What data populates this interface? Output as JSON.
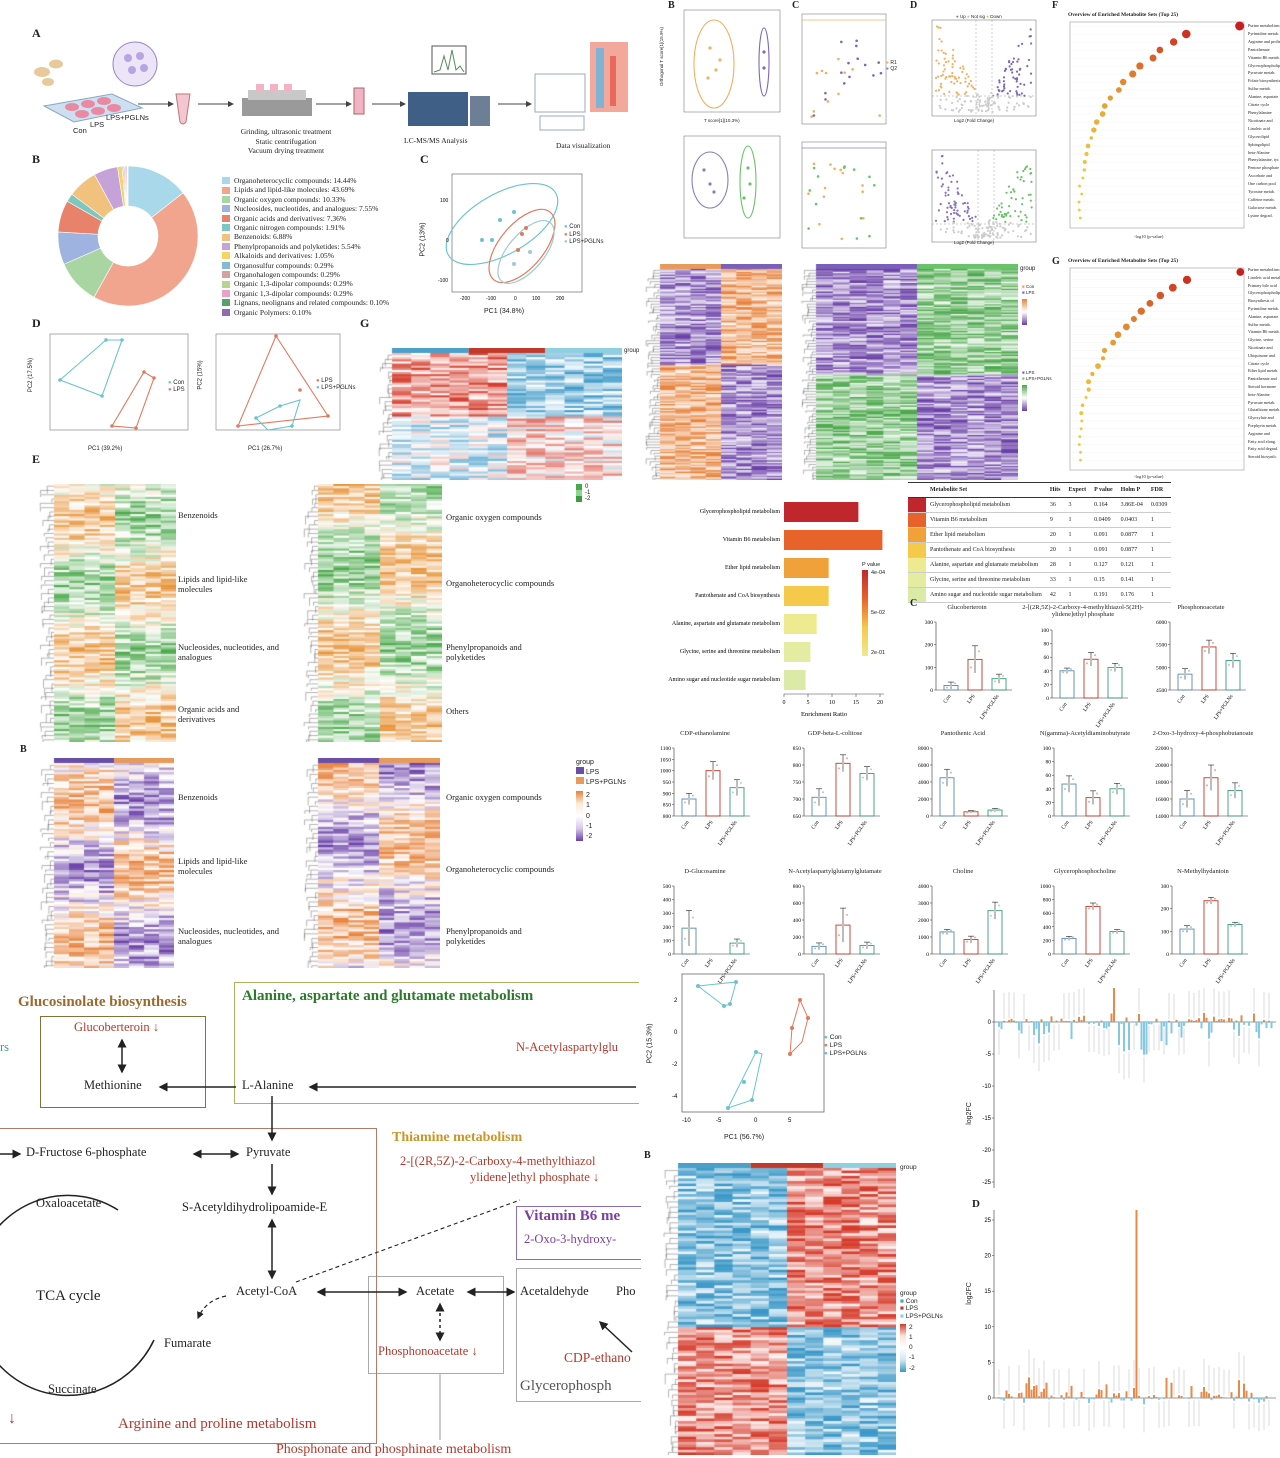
{
  "panelA": {
    "letter": "A",
    "groups": [
      "Con",
      "LPS",
      "LPS+PGLNs"
    ],
    "steps": [
      "Grinding, ultrasonic treatment",
      "Static centrifugation",
      "Vacuum drying treatment"
    ],
    "lcms": "LC-MS/MS Analysis",
    "viz": "Data visualization"
  },
  "panelB_left": {
    "letter": "B",
    "legend": [
      {
        "label": "Organoheterocyclic compounds: 14.44%",
        "color": "#a9d8ea",
        "value": 14.44
      },
      {
        "label": "Lipids and lipid-like molecules: 43.69%",
        "color": "#f2a58e",
        "value": 43.69
      },
      {
        "label": "Organic oxygen compounds: 10.33%",
        "color": "#a8d5a2",
        "value": 10.33
      },
      {
        "label": "Nucleosides, nucleotides, and analogues: 7.55%",
        "color": "#9fb3e0",
        "value": 7.55
      },
      {
        "label": "Organic acids and derivatives: 7.36%",
        "color": "#e9826b",
        "value": 7.36
      },
      {
        "label": "Organic nitrogen compounds: 1.91%",
        "color": "#7dc7c0",
        "value": 1.91
      },
      {
        "label": "Benzenoids: 6.88%",
        "color": "#f1c27d",
        "value": 6.88
      },
      {
        "label": "Phenylpropanoids and polyketides: 5.54%",
        "color": "#c5a3d8",
        "value": 5.54
      },
      {
        "label": "Alkaloids and derivatives: 1.05%",
        "color": "#f6d365",
        "value": 1.05
      },
      {
        "label": "Organosulfur compounds: 0.29%",
        "color": "#86b9d8",
        "value": 0.29
      },
      {
        "label": "Organohalogen compounds: 0.29%",
        "color": "#d6a0a0",
        "value": 0.29
      },
      {
        "label": "Organic 1,3-dipolar compounds: 0.29%",
        "color": "#b4d48f",
        "value": 0.29
      },
      {
        "label": "Organic 1,3-dipolar compounds: 0.29%",
        "color": "#e6a4c7",
        "value": 0.29
      },
      {
        "label": "Lignans, neolignans and related compounds: 0.10%",
        "color": "#5aa06c",
        "value": 0.1
      },
      {
        "label": "Organic Polymers: 0.10%",
        "color": "#8a6fb0",
        "value": 0.1
      }
    ]
  },
  "panelC_left": {
    "letter": "C",
    "xlabel": "PC1 (34.8%)",
    "ylabel": "PC2 (13%)",
    "legend": [
      "Con",
      "LPS",
      "LPS+PGLNs"
    ]
  },
  "panelD_left": {
    "letter": "D",
    "plot1": {
      "xlabel": "PC1 (39.2%)",
      "ylabel": "PC2 (17.5%)",
      "legend": [
        "Con",
        "LPS"
      ]
    },
    "plot2": {
      "xlabel": "PC1 (26.7%)",
      "ylabel": "PC2 (15%)",
      "legend": [
        "LPS",
        "LPS+PGLNs"
      ]
    }
  },
  "panelE_left": {
    "letter": "E",
    "left_classes": [
      "Benzenoids",
      "Lipids and lipid-like molecules",
      "Nucleosides, nucleotides, and analogues",
      "Organic acids and derivatives"
    ],
    "right_classes": [
      "Organic oxygen compounds",
      "Organoheterocyclic compounds",
      "Phenylpropanoids and polyketides",
      "Others"
    ]
  },
  "panelG_left": {
    "letter": "G",
    "legend_title": "group",
    "scale": [
      "1",
      "0",
      "-1",
      "-2"
    ]
  },
  "panelB_lower": {
    "letter": "B",
    "legend_title": "group",
    "groups": [
      "LPS",
      "LPS+PGLNs"
    ],
    "scale": [
      "2",
      "1",
      "0",
      "-1",
      "-2"
    ],
    "left_classes": [
      "Benzenoids",
      "Lipids and lipid-like molecules",
      "Nucleosides, nucleotides, and analogues"
    ],
    "right_classes": [
      "Organic oxygen compounds",
      "Organoheterocyclic compounds",
      "Phenylpropanoids and polyketides"
    ]
  },
  "pathway": {
    "titles": {
      "glucosinolate": "Glucosinolate biosynthesis",
      "alanine": "Alanine, aspartate and glutamate metabolism",
      "thiamine": "Thiamine metabolism",
      "vitb6": "Vitamin B6 me",
      "arginine": "Arginine and proline metabolism",
      "phosphonate": "Phosphonate and phosphinate metabolism",
      "glycero": "Glycerophosph"
    },
    "nodes": {
      "glucoberteroin": "Glucoberteroin",
      "methionine": "Methionine",
      "lalanine": "L-Alanine",
      "nacetyl": "N-Acetylaspartylglu",
      "fructose": "D-Fructose 6-phosphate",
      "pyruvate": "Pyruvate",
      "oxaloacetate": "Oxaloacetate",
      "sacetyl": "S-Acetyldihydrolipoamide-E",
      "tca": "TCA cycle",
      "acetylcoa": "Acetyl-CoA",
      "acetate": "Acetate",
      "acetaldehyde": "Acetaldehyde",
      "pho": "Pho",
      "fumarate": "Fumarate",
      "succinate": "Succinate",
      "phosphonoacetate": "Phosphonoacetate",
      "cdp": "CDP-ethano",
      "thiazole": "2-[(2R,5Z)-2-Carboxy-4-methylthiazol",
      "thiazole2": "ylidene]ethyl phosphate",
      "oxohydroxy": "2-Oxo-3-hydroxy-",
      "rs": "rs"
    }
  },
  "panelB_right": {
    "letter": "B",
    "xlabel": "T score[1](10.3%)",
    "ylabel": "Orthogonal T score[1](15.9%)"
  },
  "panelC_right": {
    "letter": "C",
    "legend": [
      "R1",
      "Q2"
    ]
  },
  "panelD_right": {
    "letter": "D",
    "legend": [
      "Up",
      "Not sig",
      "Down"
    ],
    "xlabel": "Log2 (Fold Change)",
    "ylabel": "-Log10 (P-val)"
  },
  "panelF": {
    "letter": "F",
    "title": "Overview of Enriched Metabolite Sets (Top 25)",
    "xlabel": "-log10 (p-value)",
    "labels": [
      "Purine metabolism",
      "Pyrimidine metab.",
      "Arginine and proline",
      "Pantothenate",
      "Vitamin B6 metab.",
      "Glycerophospholipid",
      "Pyruvate metab.",
      "Folate biosynthesis",
      "Sulfur metab.",
      "Alanine, aspartate",
      "Citrate cycle",
      "Phenylalanine",
      "Nicotinate and",
      "Linoleic acid",
      "Glycerolipid",
      "Sphingolipid",
      "beta-Alanine",
      "Phenylalanine, tyr.",
      "Pentose phosphate",
      "Ascorbate and",
      "One carbon pool",
      "Tyrosine metab.",
      "Caffeine metab.",
      "Galactose metab.",
      "Lysine degrad."
    ]
  },
  "panelG_right": {
    "letter": "G",
    "title": "Overview of Enriched Metabolite Sets (Top 25)",
    "xlabel": "-log10 (p-value)",
    "labels": [
      "Purine metabolism",
      "Linoleic acid metab.",
      "Primary bile acid",
      "Glycerophospholipid",
      "Biosynthesis of",
      "Pyrimidine metab.",
      "Alanine, aspartate",
      "Sulfur metab.",
      "Vitamin B6 metab.",
      "Glycine, serine",
      "Nicotinate and",
      "Ubiquinone and",
      "Citrate cycle",
      "Ether lipid metab.",
      "Pantothenate and",
      "Steroid hormone",
      "beta-Alanine",
      "Pyruvate metab.",
      "Glutathione metab.",
      "Glyoxylate and",
      "Porphyrin metab.",
      "Arginine and",
      "Fatty acid elong.",
      "Fatty acid degrad.",
      "Steroid biosynth."
    ]
  },
  "heatmaps_right": {
    "group_label": "group",
    "legend1": [
      "Con",
      "LPS"
    ],
    "legend2": [
      "LPS",
      "LPS+PGLNs"
    ],
    "scale": [
      "2",
      "1",
      "0",
      "-1",
      "-2"
    ]
  },
  "enrichment_bar": {
    "chart_data": {
      "type": "bar",
      "categories": [
        "Glycerophospholipid metabolism",
        "Vitamin B6 metabolism",
        "Ether lipid metabolism",
        "Pantothenate and CoA biosynthesis",
        "Alanine, aspartate and glutamate metabolism",
        "Glycine, serine and threonine metabolism",
        "Amino sugar and nucleotide sugar metabolism"
      ],
      "values": [
        15.5,
        20.5,
        9.3,
        9.3,
        6.8,
        5.5,
        4.5
      ],
      "colors": [
        "#c0272d",
        "#e8632a",
        "#f0a13a",
        "#f5c94a",
        "#eeea90",
        "#e3ecA0",
        "#dceaa8"
      ],
      "xlabel": "Enrichment Ratio",
      "xticks": [
        "0",
        "5",
        "10",
        "15",
        "20"
      ],
      "legend_title": "P value",
      "legend_ticks": [
        "4e-04",
        "5e-02",
        "2e-01"
      ]
    }
  },
  "enrichment_table": {
    "headers": [
      "Metabolite Set",
      "Hits",
      "Expect",
      "P value",
      "Holm P",
      "FDR"
    ],
    "rows": [
      [
        "Glycerophospholipid metabolism",
        "36",
        "3",
        "0.164",
        "3.86E-04",
        "0.0309"
      ],
      [
        "Vitamin B6 metabolism",
        "9",
        "1",
        "0.0409",
        "0.0403",
        "1"
      ],
      [
        "Ether lipid metabolism",
        "20",
        "1",
        "0.091",
        "0.0877",
        "1"
      ],
      [
        "Pantothenate and CoA biosynthesis",
        "20",
        "1",
        "0.091",
        "0.0877",
        "1"
      ],
      [
        "Alanine, aspartate and glutamate metabolism",
        "28",
        "1",
        "0.127",
        "0.121",
        "1"
      ],
      [
        "Glycine, serine and threonine metabolism",
        "33",
        "1",
        "0.15",
        "0.141",
        "1"
      ],
      [
        "Amino sugar and nucleotide sugar metabolism",
        "42",
        "1",
        "0.191",
        "0.176",
        "1"
      ]
    ],
    "colors": [
      "#c0272d",
      "#e8632a",
      "#f0a13a",
      "#f5c94a",
      "#eeea90",
      "#e3eca0",
      "#dceaa8"
    ]
  },
  "panelC_bars": {
    "letter": "C",
    "groups": [
      "Con",
      "LPS",
      "LPS+PGLNs"
    ],
    "chart_data": [
      {
        "type": "bar",
        "title": "Glucoberteroin",
        "values": [
          20,
          135,
          50
        ],
        "errors": [
          15,
          60,
          20
        ],
        "ylim": [
          0,
          300
        ],
        "yticks": [
          "0",
          "100",
          "200",
          "300"
        ]
      },
      {
        "type": "bar",
        "title": "2-[(2R,5Z)-2-Carboxy-4-methylthiazol-5(2H)-ylidene]ethyl phosphate",
        "values": [
          40,
          57,
          45
        ],
        "errors": [
          4,
          10,
          6
        ],
        "ylim": [
          0,
          100
        ],
        "yticks": [
          "0",
          "20",
          "40",
          "60",
          "80",
          "100"
        ]
      },
      {
        "type": "bar",
        "title": "Phosphonoacetate",
        "values": [
          4850,
          5450,
          5150
        ],
        "errors": [
          120,
          150,
          160
        ],
        "ylim": [
          4500,
          6000
        ],
        "yticks": [
          "4500",
          "5000",
          "5500",
          "6000"
        ]
      },
      {
        "type": "bar",
        "title": "CDP-ethanolamine",
        "values": [
          875,
          1000,
          925
        ],
        "errors": [
          25,
          40,
          35
        ],
        "ylim": [
          800,
          1100
        ],
        "yticks": [
          "800",
          "850",
          "900",
          "950",
          "1000",
          "1050",
          "1100"
        ]
      },
      {
        "type": "bar",
        "title": "GDP-beta-L-colitose",
        "values": [
          705,
          805,
          775
        ],
        "errors": [
          25,
          25,
          20
        ],
        "ylim": [
          650,
          850
        ],
        "yticks": [
          "650",
          "700",
          "750",
          "800",
          "850"
        ]
      },
      {
        "type": "bar",
        "title": "Pantothenic Acid",
        "values": [
          4500,
          500,
          700
        ],
        "errors": [
          1000,
          150,
          200
        ],
        "ylim": [
          0,
          8000
        ],
        "yticks": [
          "0",
          "2000",
          "4000",
          "6000",
          "8000"
        ]
      },
      {
        "type": "bar",
        "title": "N(gamma)-Acetyldiaminobutyrate",
        "values": [
          47,
          27,
          40
        ],
        "errors": [
          12,
          10,
          8
        ],
        "ylim": [
          0,
          100
        ],
        "yticks": [
          "0",
          "20",
          "40",
          "60",
          "80",
          "100"
        ]
      },
      {
        "type": "bar",
        "title": "2-Oxo-3-hydroxy-4-phosphobutanoate",
        "values": [
          16000,
          18500,
          17000
        ],
        "errors": [
          1000,
          1500,
          900
        ],
        "ylim": [
          14000,
          22000
        ],
        "yticks": [
          "14000",
          "16000",
          "18000",
          "20000",
          "22000"
        ]
      },
      {
        "type": "bar",
        "title": "D-Glucosamine",
        "values": [
          190,
          0,
          80
        ],
        "errors": [
          130,
          0,
          30
        ],
        "ylim": [
          0,
          500
        ],
        "yticks": [
          "0",
          "100",
          "200",
          "300",
          "400",
          "500"
        ]
      },
      {
        "type": "bar",
        "title": "N-Acetylaspartylglutamylglutamate",
        "values": [
          90,
          340,
          100
        ],
        "errors": [
          40,
          200,
          40
        ],
        "ylim": [
          0,
          800
        ],
        "yticks": [
          "0",
          "200",
          "400",
          "600",
          "800"
        ]
      },
      {
        "type": "bar",
        "title": "Choline",
        "values": [
          1300,
          850,
          2550
        ],
        "errors": [
          150,
          200,
          500
        ],
        "ylim": [
          0,
          4000
        ],
        "yticks": [
          "0",
          "1000",
          "2000",
          "3000",
          "4000"
        ]
      },
      {
        "type": "bar",
        "title": "Glycerophosphocholine",
        "values": [
          230,
          700,
          330
        ],
        "errors": [
          30,
          50,
          30
        ],
        "ylim": [
          0,
          1000
        ],
        "yticks": [
          "0",
          "200",
          "400",
          "600",
          "800",
          "1000"
        ]
      },
      {
        "type": "bar",
        "title": "N-Methylhydantoin",
        "values": [
          110,
          235,
          130
        ],
        "errors": [
          15,
          15,
          10
        ],
        "ylim": [
          0,
          300
        ],
        "yticks": [
          "0",
          "100",
          "200",
          "300"
        ]
      }
    ]
  },
  "pca_lower": {
    "xlabel": "PC1 (56.7%)",
    "ylabel": "PC2 (15.3%)",
    "legend": [
      "Con",
      "LPS",
      "LPS+PGLNs"
    ],
    "xticks": [
      "-10",
      "-5",
      "0",
      "5"
    ],
    "yticks": [
      "2",
      "0",
      "-2",
      "-4"
    ]
  },
  "heat_lower": {
    "letter": "B",
    "legend_title": "group",
    "legend": [
      "Con",
      "LPS",
      "LPS+PGLNs"
    ],
    "scale": [
      "2",
      "1",
      "0",
      "-1",
      "-2"
    ]
  },
  "log2fc_C": {
    "ylabel": "log2FC",
    "yticks": [
      "0",
      "-5",
      "-10",
      "-15",
      "-20",
      "-25"
    ]
  },
  "log2fc_D": {
    "letter": "D",
    "ylabel": "log2FC",
    "yticks": [
      "25",
      "20",
      "15",
      "10",
      "5",
      "0"
    ]
  }
}
